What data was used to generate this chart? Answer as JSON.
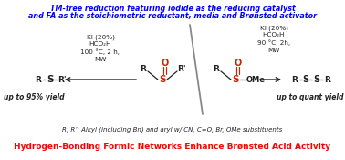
{
  "title_line1": "TM-free reduction featuring iodide as the reducing catalyst",
  "title_line2": "and FA as the stoichiometric reductant, media and Brønsted activator",
  "title_color": "#0000FF",
  "bottom_text": "Hydrogen-Bonding Formic Networks Enhance Brønsted Acid Activity",
  "bottom_color": "#FF0000",
  "subtitle": "R, R’: Alkyl (including Bn) and aryl w/ CN, C=O, Br, OMe substituents",
  "left_conditions": "KI (20%)\nHCO₂H\n100 °C, 2 h,\nMW",
  "right_conditions": "KI (20%)\nHCO₂H\n90 °C, 2h,\nMW",
  "left_yield": "up to 95% yield",
  "right_yield": "up to quant yield",
  "bg_color": "#FFFFFF",
  "dark": "#222222",
  "red": "#CC2200"
}
